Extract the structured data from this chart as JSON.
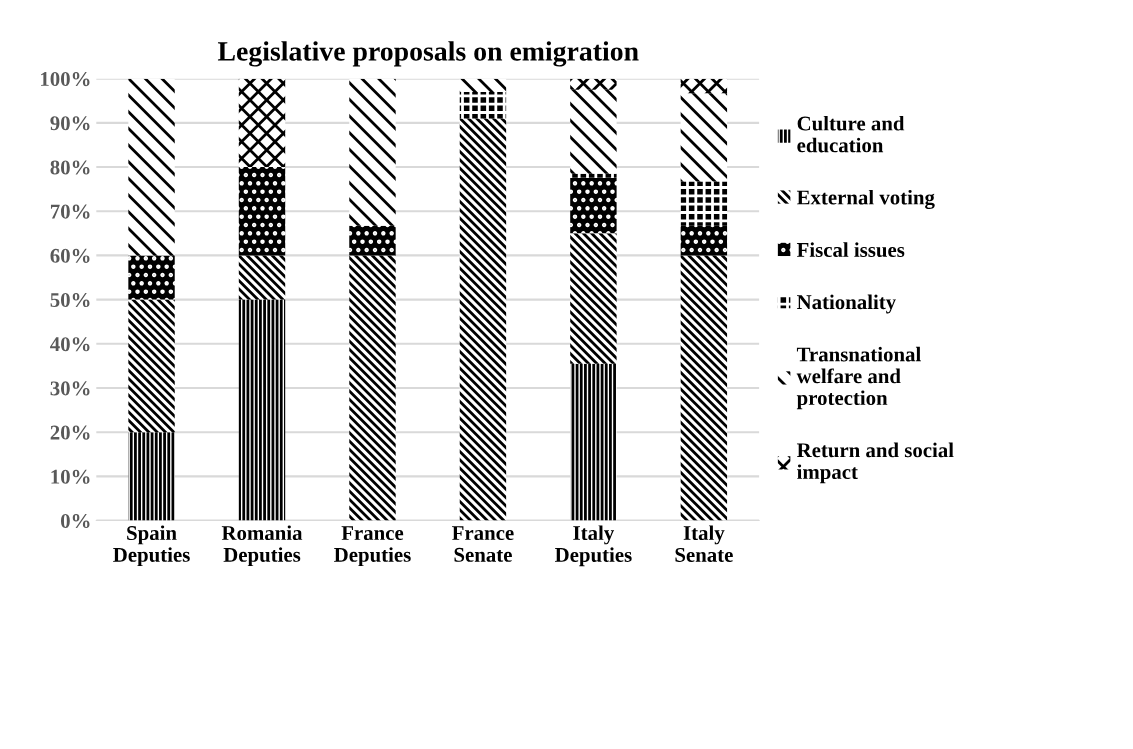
{
  "chart_data": {
    "type": "bar",
    "title": "Legislative proposals on emigration",
    "stacked": true,
    "categories": [
      "Spain Deputies",
      "Romania Deputies",
      "France Deputies",
      "France Senate",
      "Italy Deputies",
      "Italy Senate"
    ],
    "series": [
      {
        "name": "Culture and education",
        "color": "#000000",
        "values": [
          20,
          50,
          0,
          0,
          35.5,
          0
        ]
      },
      {
        "name": "External voting",
        "color": "#000000",
        "values": [
          30,
          10,
          60,
          91,
          29.5,
          60
        ]
      },
      {
        "name": "Fiscal issues",
        "color": "#000000",
        "values": [
          10,
          20,
          6.7,
          0,
          12.5,
          6.7
        ]
      },
      {
        "name": "Nationality",
        "color": "#000000",
        "values": [
          0,
          0,
          0,
          6,
          1,
          10
        ]
      },
      {
        "name": "Transnational welfare and protection",
        "color": "#000000",
        "values": [
          40,
          0,
          33.3,
          3,
          19,
          20
        ]
      },
      {
        "name": "Return and social impact",
        "color": "#000000",
        "values": [
          0,
          20,
          0,
          0,
          2.5,
          3.3
        ]
      }
    ],
    "ylim": [
      0,
      100
    ],
    "yticks": [
      {
        "value": 0,
        "label": "0%"
      },
      {
        "value": 10,
        "label": "10%"
      },
      {
        "value": 20,
        "label": "20%"
      },
      {
        "value": 30,
        "label": "30%"
      },
      {
        "value": 40,
        "label": "40%"
      },
      {
        "value": 50,
        "label": "50%"
      },
      {
        "value": 60,
        "label": "60%"
      },
      {
        "value": 70,
        "label": "70%"
      },
      {
        "value": 80,
        "label": "80%"
      },
      {
        "value": 90,
        "label": "90%"
      },
      {
        "value": 100,
        "label": "100%"
      }
    ],
    "grid": "y",
    "legend": "right"
  }
}
